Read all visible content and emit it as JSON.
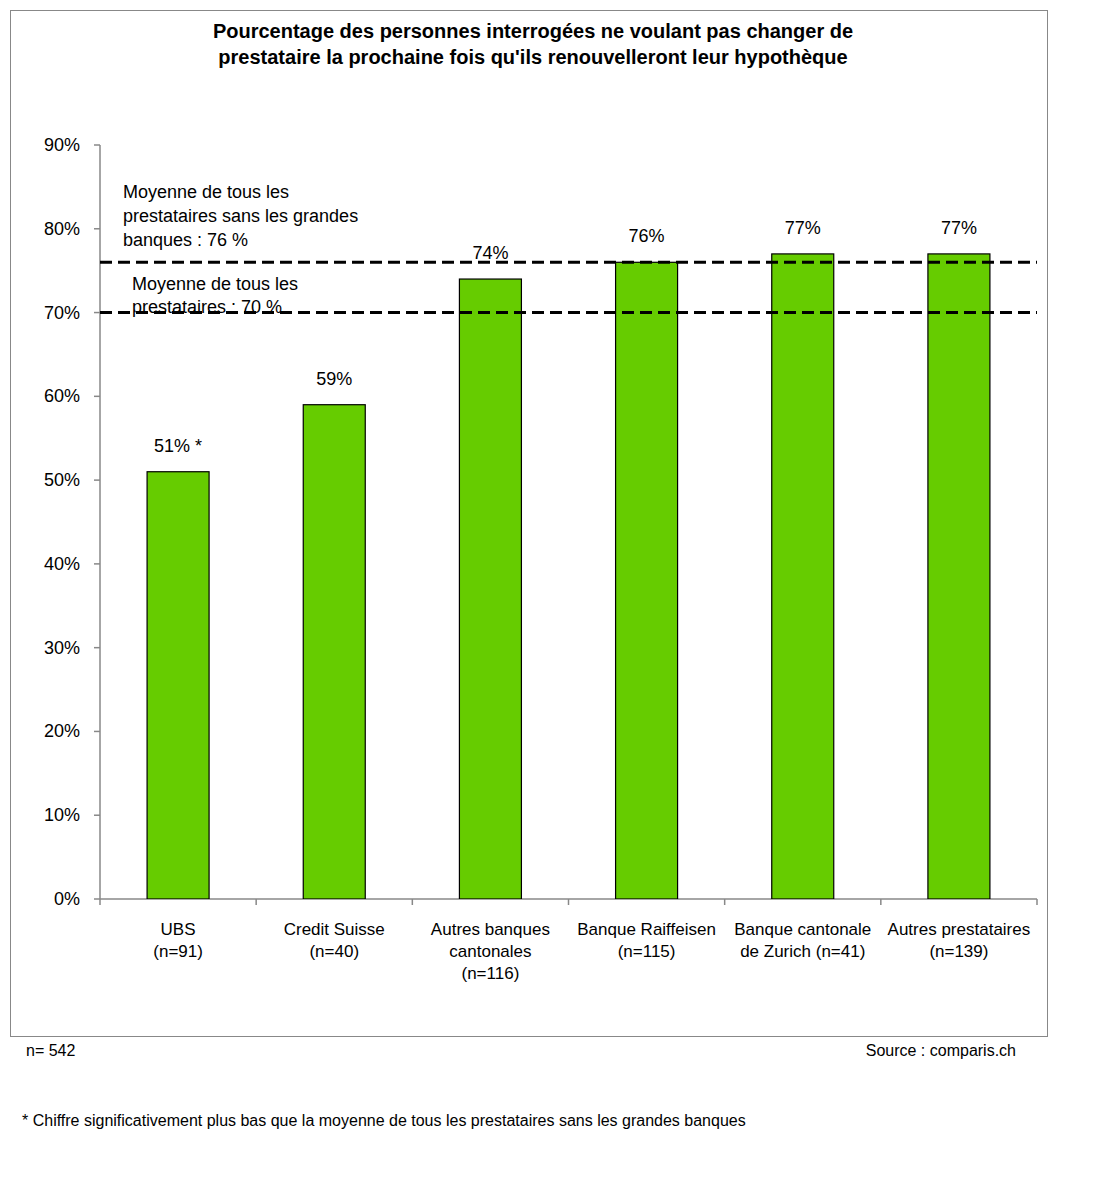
{
  "chart_data": {
    "type": "bar",
    "title": [
      "Pourcentage des personnes interrogées ne voulant pas changer de",
      "prestataire la prochaine fois qu'ils renouvelleront leur hypothèque"
    ],
    "categories": [
      "UBS\n(n=91)",
      "Credit Suisse\n(n=40)",
      "Autres banques\ncantonales\n(n=116)",
      "Banque Raiffeisen\n(n=115)",
      "Banque cantonale\nde Zurich (n=41)",
      "Autres prestataires\n(n=139)"
    ],
    "values": [
      51,
      59,
      74,
      76,
      77,
      77
    ],
    "value_labels": [
      "51% *",
      "59%",
      "74%",
      "76%",
      "77%",
      "77%"
    ],
    "data_labels": true,
    "color": "#66cc00",
    "ylim": [
      0,
      90
    ],
    "yticks": [
      {
        "value": 0,
        "label": "0%"
      },
      {
        "value": 10,
        "label": "10%"
      },
      {
        "value": 20,
        "label": "20%"
      },
      {
        "value": 30,
        "label": "30%"
      },
      {
        "value": 40,
        "label": "40%"
      },
      {
        "value": 50,
        "label": "50%"
      },
      {
        "value": 60,
        "label": "60%"
      },
      {
        "value": 70,
        "label": "70%"
      },
      {
        "value": 80,
        "label": "80%"
      },
      {
        "value": 90,
        "label": "90%"
      }
    ],
    "grid": false,
    "annotations": [
      {
        "label": "Moyenne de tous les\nprestataires sans les grandes\nbanques  :  76 %",
        "value": 76
      },
      {
        "label": "Moyenne de tous les\nprestataires : 70 %",
        "value": 70
      }
    ],
    "sample_size": "n= 542",
    "source": "Source : comparis.ch",
    "footnote": "* Chiffre significativement plus bas que la moyenne de tous les prestataires sans les grandes banques"
  }
}
